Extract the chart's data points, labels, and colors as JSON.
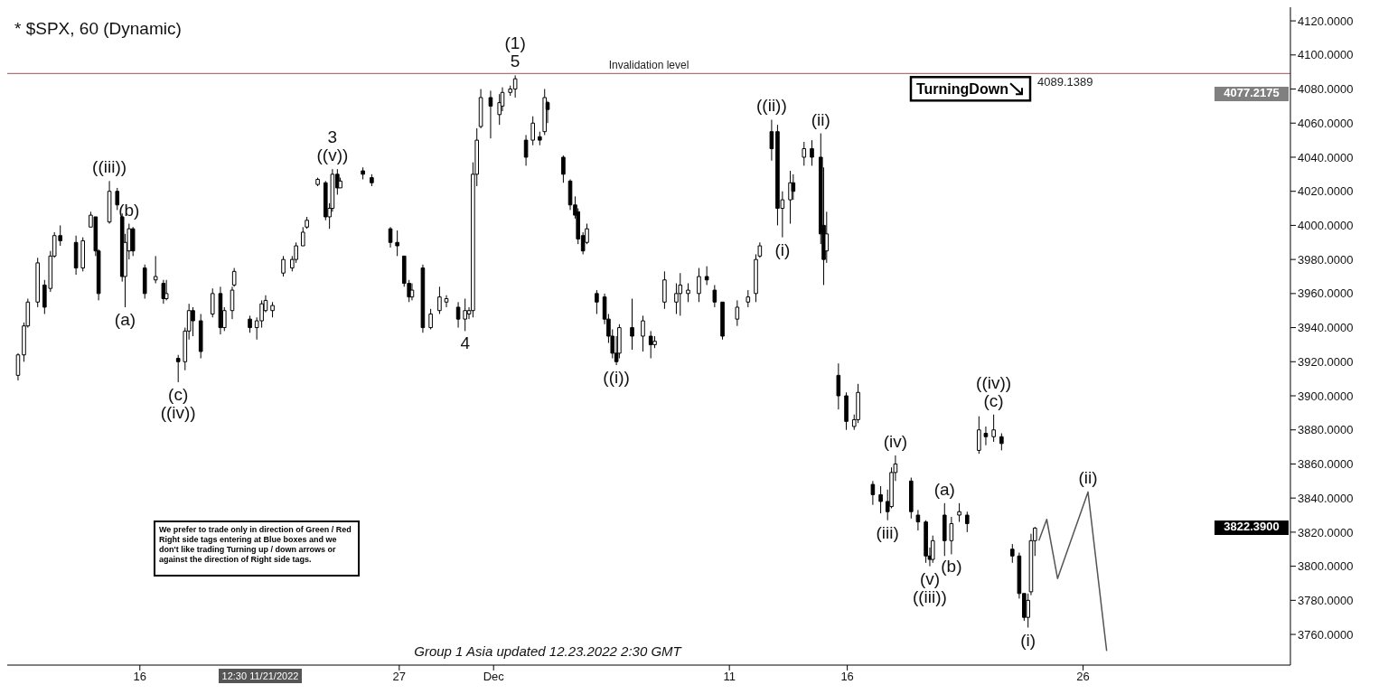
{
  "chart_data": {
    "type": "candlestick",
    "title": "* $SPX, 60 (Dynamic)",
    "color": "#000000",
    "x": [
      "2022-11-10T20:00",
      "2022-11-11T02:00",
      "2022-11-11T06:00",
      "2022-11-11T16:00",
      "2022-11-11T23:00",
      "2022-11-12T05:00",
      "2022-11-12T09:00",
      "2022-11-12T15:00",
      "2022-11-13T07:00",
      "2022-11-13T14:00",
      "2022-11-13T22:00",
      "2022-11-14T03:00",
      "2022-11-14T06:00",
      "2022-11-14T17:00",
      "2022-11-15T01:00",
      "2022-11-15T06:00",
      "2022-11-15T09:00",
      "2022-11-15T13:00",
      "2022-11-15T17:00",
      "2022-11-16T05:00",
      "2022-11-16T16:00",
      "2022-11-17T00:00",
      "2022-11-17T03:00",
      "2022-11-17T15:00",
      "2022-11-17T22:00",
      "2022-11-18T02:00",
      "2022-11-18T06:00",
      "2022-11-18T14:00",
      "2022-11-19T02:00",
      "2022-11-19T10:00",
      "2022-11-19T14:00",
      "2022-11-19T22:00",
      "2022-11-20T00:00",
      "2022-11-20T16:00",
      "2022-11-20T23:00",
      "2022-11-21T04:00",
      "2022-11-21T08:00",
      "2022-11-21T15:00",
      "2022-11-22T02:00",
      "2022-11-22T11:00",
      "2022-11-22T15:00",
      "2022-11-22T22:00",
      "2022-11-23T02:00",
      "2022-11-23T13:00",
      "2022-11-23T21:00",
      "2022-11-24T01:00",
      "2022-11-24T04:00",
      "2022-11-24T09:00",
      "2022-11-24T12:00",
      "2022-11-25T11:00",
      "2022-11-25T20:00",
      "2022-11-26T15:00",
      "2022-11-26T22:00",
      "2022-11-27T05:00",
      "2022-11-27T10:00",
      "2022-11-27T13:00",
      "2022-11-28T00:00",
      "2022-11-28T08:00",
      "2022-11-28T17:00",
      "2022-11-29T00:00",
      "2022-11-29T12:00",
      "2022-11-29T19:00",
      "2022-11-29T23:00",
      "2022-11-30T03:00",
      "2022-11-30T07:00",
      "2022-11-30T11:00",
      "2022-11-30T21:00",
      "2022-12-01T06:00",
      "2022-12-01T09:00",
      "2022-12-01T17:00",
      "2022-12-01T22:00",
      "2022-12-02T09:00",
      "2022-12-02T16:00",
      "2022-12-02T23:00",
      "2022-12-03T04:00",
      "2022-12-03T07:00",
      "2022-12-03T23:00",
      "2022-12-04T06:00",
      "2022-12-04T11:00",
      "2022-12-04T14:00",
      "2022-12-04T19:00",
      "2022-12-04T23:00",
      "2022-12-05T09:00",
      "2022-12-05T17:00",
      "2022-12-05T21:00",
      "2022-12-06T01:00",
      "2022-12-06T05:00",
      "2022-12-06T08:00",
      "2022-12-06T21:00",
      "2022-12-07T08:00",
      "2022-12-07T16:00",
      "2022-12-07T20:00",
      "2022-12-08T06:00",
      "2022-12-08T18:00",
      "2022-12-08T22:00",
      "2022-12-09T06:00",
      "2022-12-09T17:00",
      "2022-12-10T01:00",
      "2022-12-10T09:00",
      "2022-12-10T17:00",
      "2022-12-11T08:00",
      "2022-12-11T19:00",
      "2022-12-12T03:00",
      "2022-12-12T07:00",
      "2022-12-12T19:00",
      "2022-12-13T01:00",
      "2022-12-13T06:00",
      "2022-12-13T14:00",
      "2022-12-13T17:00",
      "2022-12-14T04:00",
      "2022-12-14T12:00",
      "2022-12-14T21:00",
      "2022-12-15T00:00",
      "2022-12-15T03:00",
      "2022-12-15T15:00",
      "2022-12-15T23:00",
      "2022-12-16T07:00",
      "2022-12-16T11:00",
      "2022-12-17T02:00",
      "2022-12-17T10:00",
      "2022-12-17T17:00",
      "2022-12-17T21:00",
      "2022-12-18T01:00",
      "2022-12-18T17:00",
      "2022-12-19T00:00",
      "2022-12-19T08:00",
      "2022-12-19T12:00",
      "2022-12-19T15:00",
      "2022-12-20T03:00",
      "2022-12-20T10:00",
      "2022-12-20T18:00",
      "2022-12-21T02:00",
      "2022-12-21T14:00",
      "2022-12-21T21:00",
      "2022-12-22T05:00",
      "2022-12-22T13:00",
      "2022-12-23T00:00",
      "2022-12-23T07:00",
      "2022-12-23T12:00",
      "2022-12-23T16:00",
      "2022-12-23T19:00",
      "2022-12-23T23:00"
    ],
    "ohlc": [
      [
        3912,
        3925,
        3909,
        3924
      ],
      [
        3924,
        3943,
        3920,
        3941
      ],
      [
        3941,
        3957,
        3940,
        3955
      ],
      [
        3955,
        3981,
        3952,
        3978
      ],
      [
        3965,
        3968,
        3948,
        3952
      ],
      [
        3963,
        3985,
        3961,
        3982
      ],
      [
        3982,
        3996,
        3981,
        3994
      ],
      [
        3994,
        4000,
        3988,
        3991
      ],
      [
        3990,
        3994,
        3971,
        3975
      ],
      [
        3975,
        3993,
        3973,
        3991
      ],
      [
        3999,
        4008,
        3999,
        4006
      ],
      [
        4005,
        4005,
        3982,
        3985
      ],
      [
        3985,
        3986,
        3956,
        3960
      ],
      [
        4002,
        4026,
        4001,
        4020
      ],
      [
        4020,
        4022,
        4009,
        4012
      ],
      [
        4005,
        4007,
        3967,
        3970
      ],
      [
        3970,
        3995,
        3952,
        3990
      ],
      [
        3985,
        4001,
        3980,
        3998
      ],
      [
        3998,
        3999,
        3982,
        3985
      ],
      [
        3975,
        3977,
        3957,
        3960
      ],
      [
        3968,
        3982,
        3966,
        3970
      ],
      [
        3966,
        3968,
        3954,
        3957
      ],
      [
        3957,
        3968,
        3956,
        3960
      ],
      [
        3922,
        3924,
        3908,
        3920
      ],
      [
        3920,
        3940,
        3915,
        3938
      ],
      [
        3938,
        3954,
        3933,
        3950
      ],
      [
        3950,
        3952,
        3935,
        3944
      ],
      [
        3944,
        3948,
        3922,
        3926
      ],
      [
        3948,
        3963,
        3946,
        3960
      ],
      [
        3960,
        3964,
        3936,
        3940
      ],
      [
        3940,
        3952,
        3938,
        3950
      ],
      [
        3950,
        3964,
        3945,
        3962
      ],
      [
        3965,
        3975,
        3964,
        3973
      ],
      [
        3945,
        3947,
        3937,
        3940
      ],
      [
        3940,
        3946,
        3933,
        3944
      ],
      [
        3944,
        3956,
        3940,
        3954
      ],
      [
        3950,
        3959,
        3949,
        3956
      ],
      [
        3950,
        3955,
        3946,
        3953
      ],
      [
        3972,
        3982,
        3970,
        3980
      ],
      [
        3975,
        3982,
        3973,
        3980
      ],
      [
        3980,
        3990,
        3978,
        3988
      ],
      [
        3988,
        3999,
        3988,
        3996
      ],
      [
        3999,
        4005,
        3998,
        4003
      ],
      [
        4024,
        4028,
        4023,
        4027
      ],
      [
        4025,
        4026,
        4003,
        4005
      ],
      [
        4005,
        4013,
        3998,
        4010
      ],
      [
        4010,
        4033,
        4008,
        4030
      ],
      [
        4030,
        4033,
        4018,
        4022
      ],
      [
        4022,
        4028,
        4022,
        4026
      ],
      [
        4032,
        4034,
        4027,
        4030
      ],
      [
        4028,
        4030,
        4023,
        4025
      ],
      [
        3998,
        3999,
        3987,
        3990
      ],
      [
        3990,
        3997,
        3982,
        3988
      ],
      [
        3982,
        3982,
        3964,
        3966
      ],
      [
        3966,
        3968,
        3955,
        3958
      ],
      [
        3958,
        3966,
        3956,
        3962
      ],
      [
        3975,
        3977,
        3937,
        3940
      ],
      [
        3940,
        3951,
        3939,
        3948
      ],
      [
        3950,
        3964,
        3948,
        3958
      ],
      [
        3955,
        3959,
        3952,
        3957
      ],
      [
        3952,
        3955,
        3940,
        3945
      ],
      [
        3945,
        3957,
        3938,
        3950
      ],
      [
        3948,
        3952,
        3945,
        3950
      ],
      [
        3950,
        4037,
        3946,
        4030
      ],
      [
        4030,
        4057,
        4023,
        4050
      ],
      [
        4058,
        4080,
        4057,
        4075
      ],
      [
        4075,
        4079,
        4051,
        4070
      ],
      [
        4065,
        4077,
        4059,
        4072
      ],
      [
        4070,
        4081,
        4067,
        4078
      ],
      [
        4078,
        4082,
        4076,
        4080
      ],
      [
        4080,
        4088,
        4075,
        4086
      ],
      [
        4050,
        4053,
        4035,
        4040
      ],
      [
        4050,
        4064,
        4047,
        4060
      ],
      [
        4052,
        4055,
        4047,
        4050
      ],
      [
        4055,
        4080,
        4053,
        4075
      ],
      [
        4072,
        4073,
        4060,
        4068
      ],
      [
        4040,
        4041,
        4025,
        4030
      ],
      [
        4026,
        4027,
        4009,
        4012
      ],
      [
        4012,
        4017,
        4004,
        4006
      ],
      [
        4008,
        4010,
        3989,
        3992
      ],
      [
        3994,
        3996,
        3983,
        3985
      ],
      [
        3990,
        4001,
        3989,
        3998
      ],
      [
        3960,
        3962,
        3948,
        3955
      ],
      [
        3958,
        3960,
        3942,
        3945
      ],
      [
        3945,
        3948,
        3931,
        3935
      ],
      [
        3935,
        3939,
        3922,
        3925
      ],
      [
        3925,
        3935,
        3918,
        3920
      ],
      [
        3925,
        3942,
        3922,
        3940
      ],
      [
        3940,
        3957,
        3927,
        3935
      ],
      [
        3935,
        3947,
        3926,
        3944
      ],
      [
        3935,
        3938,
        3922,
        3930
      ],
      [
        3930,
        3935,
        3928,
        3932
      ],
      [
        3955,
        3973,
        3951,
        3968
      ],
      [
        3955,
        3966,
        3948,
        3960
      ],
      [
        3960,
        3972,
        3947,
        3965
      ],
      [
        3960,
        3966,
        3955,
        3962
      ],
      [
        3960,
        3975,
        3955,
        3970
      ],
      [
        3970,
        3976,
        3965,
        3968
      ],
      [
        3962,
        3965,
        3952,
        3955
      ],
      [
        3955,
        3955,
        3933,
        3935
      ],
      [
        3945,
        3956,
        3941,
        3952
      ],
      [
        3955,
        3962,
        3952,
        3958
      ],
      [
        3960,
        3983,
        3955,
        3980
      ],
      [
        3982,
        3990,
        3981,
        3988
      ],
      [
        4055,
        4062,
        4038,
        4045
      ],
      [
        4055,
        4059,
        4000,
        4010
      ],
      [
        4010,
        4020,
        3993,
        4015
      ],
      [
        4015,
        4032,
        4001,
        4025
      ],
      [
        4025,
        4030,
        4015,
        4020
      ],
      [
        4040,
        4049,
        4035,
        4045
      ],
      [
        4045,
        4050,
        4035,
        4040
      ],
      [
        4040,
        4054,
        3989,
        3995
      ],
      [
        4000,
        4034,
        3965,
        3980
      ],
      [
        3985,
        4008,
        3978,
        3995
      ],
      [
        3912,
        3919,
        3892,
        3900
      ],
      [
        3900,
        3902,
        3880,
        3885
      ],
      [
        3882,
        3889,
        3880,
        3886
      ],
      [
        3886,
        3907,
        3884,
        3902
      ],
      [
        3848,
        3850,
        3836,
        3842
      ],
      [
        3842,
        3847,
        3831,
        3838
      ],
      [
        3838,
        3845,
        3827,
        3832
      ],
      [
        3835,
        3858,
        3834,
        3855
      ],
      [
        3855,
        3865,
        3850,
        3860
      ],
      [
        3850,
        3852,
        3828,
        3832
      ],
      [
        3830,
        3833,
        3821,
        3826
      ],
      [
        3826,
        3827,
        3802,
        3806
      ],
      [
        3806,
        3811,
        3800,
        3804
      ],
      [
        3804,
        3818,
        3802,
        3815
      ],
      [
        3830,
        3837,
        3806,
        3815
      ],
      [
        3815,
        3829,
        3807,
        3825
      ],
      [
        3830,
        3837,
        3826,
        3832
      ],
      [
        3830,
        3832,
        3820,
        3825
      ],
      [
        3868,
        3888,
        3866,
        3880
      ],
      [
        3878,
        3882,
        3871,
        3876
      ],
      [
        3876,
        3889,
        3873,
        3880
      ],
      [
        3876,
        3878,
        3868,
        3872
      ],
      [
        3810,
        3813,
        3802,
        3806
      ],
      [
        3806,
        3808,
        3781,
        3784
      ],
      [
        3784,
        3784,
        3768,
        3770
      ],
      [
        3770,
        3784,
        3764,
        3780
      ],
      [
        3785,
        3819,
        3783,
        3815
      ],
      [
        3815,
        3823,
        3806,
        3822.39
      ]
    ],
    "series": [
      {
        "type": "line",
        "color": "#555555",
        "x": [
          "2022-12-24T03:00",
          "2022-12-24T11:00",
          "2022-12-24T22:00",
          "2022-12-26T05:00",
          "2022-12-27T00:00"
        ],
        "values": [
          3815,
          3827.5,
          3792.8,
          3843.6,
          3750.3
        ]
      }
    ],
    "xlim": [
      "2022-11-10T09:00",
      "2023-01-03T19:00"
    ],
    "xticks": [
      {
        "value": "2022-11-16",
        "label": "16"
      },
      {
        "value": "2022-11-27",
        "label": "27"
      },
      {
        "value": "2022-12-01",
        "label": "Dec"
      },
      {
        "value": "2022-12-11",
        "label": "11"
      },
      {
        "value": "2022-12-16",
        "label": "16"
      },
      {
        "value": "2022-12-26",
        "label": "26"
      }
    ],
    "ylim": [
      3742,
      4128
    ],
    "yticks": [
      {
        "value": 3760,
        "label": "3760.0000"
      },
      {
        "value": 3780,
        "label": "3780.0000"
      },
      {
        "value": 3800,
        "label": "3800.0000"
      },
      {
        "value": 3820,
        "label": "3820.0000"
      },
      {
        "value": 3840,
        "label": "3840.0000"
      },
      {
        "value": 3860,
        "label": "3860.0000"
      },
      {
        "value": 3880,
        "label": "3880.0000"
      },
      {
        "value": 3900,
        "label": "3900.0000"
      },
      {
        "value": 3920,
        "label": "3920.0000"
      },
      {
        "value": 3940,
        "label": "3940.0000"
      },
      {
        "value": 3960,
        "label": "3960.0000"
      },
      {
        "value": 3980,
        "label": "3980.0000"
      },
      {
        "value": 4000,
        "label": "4000.0000"
      },
      {
        "value": 4020,
        "label": "4020.0000"
      },
      {
        "value": 4040,
        "label": "4040.0000"
      },
      {
        "value": 4060,
        "label": "4060.0000"
      },
      {
        "value": 4080,
        "label": "4080.0000"
      },
      {
        "value": 4100,
        "label": "4100.0000"
      },
      {
        "value": 4120,
        "label": "4120.0000"
      }
    ],
    "ref_lines": [
      {
        "axis": "y",
        "value": 4089.1389,
        "label": "Invalidation level",
        "color": "#e06060"
      }
    ],
    "annotations": [
      "TurningDown",
      "We prefer to trade only in direction of Green / Red Right side tags entering at Blue boxes and we don't like trading Turning up / down arrows or against the direction of Right side tags.",
      "12:30 11/21/2022",
      "Group 1 Asia updated 12.23.2022 2:30 GMT",
      "4089.1389",
      {
        "text": "((iii))",
        "x": "2022-11-14T17:00",
        "y": 4026
      },
      {
        "text": "(b)",
        "x": "2022-11-15T13:00",
        "y": 4001
      },
      {
        "text": "(a)",
        "x": "2022-11-15T09:00",
        "y": 3952
      },
      {
        "text": "(c)",
        "x": "2022-11-17T15:00",
        "y": 3908
      },
      {
        "text": "((iv))",
        "x": "2022-11-17T15:00",
        "y": 3908
      },
      {
        "text": "3",
        "x": "2022-11-24T04:00",
        "y": 4033
      },
      {
        "text": "((v))",
        "x": "2022-11-24T04:00",
        "y": 4033
      },
      {
        "text": "4",
        "x": "2022-11-29T19:00",
        "y": 3938
      },
      {
        "text": "(1)",
        "x": "2022-12-01T22:00",
        "y": 4088
      },
      {
        "text": "5",
        "x": "2022-12-01T22:00",
        "y": 4088
      },
      {
        "text": "((i))",
        "x": "2022-12-06T05:00",
        "y": 3918
      },
      {
        "text": "((ii))",
        "x": "2022-12-12T19:00",
        "y": 4062
      },
      {
        "text": "(i)",
        "x": "2022-12-13T06:00",
        "y": 3993
      },
      {
        "text": "(ii)",
        "x": "2022-12-14T21:00",
        "y": 4054
      },
      {
        "text": "(iii)",
        "x": "2022-12-17T17:00",
        "y": 3827
      },
      {
        "text": "(iv)",
        "x": "2022-12-18T01:00",
        "y": 3865
      },
      {
        "text": "(v)",
        "x": "2022-12-19T12:00",
        "y": 3800
      },
      {
        "text": "((iii))",
        "x": "2022-12-19T12:00",
        "y": 3800
      },
      {
        "text": "(a)",
        "x": "2022-12-20T03:00",
        "y": 3837
      },
      {
        "text": "(b)",
        "x": "2022-12-20T10:00",
        "y": 3807
      },
      {
        "text": "((iv))",
        "x": "2022-12-22T05:00",
        "y": 3889
      },
      {
        "text": "(c)",
        "x": "2022-12-22T05:00",
        "y": 3889
      },
      {
        "text": "(i)",
        "x": "2022-12-23T16:00",
        "y": 3764
      },
      {
        "text": "(ii)",
        "x": "2022-12-26T05:00",
        "y": 3843.6
      },
      "4077.2175",
      "3822.3900"
    ]
  }
}
